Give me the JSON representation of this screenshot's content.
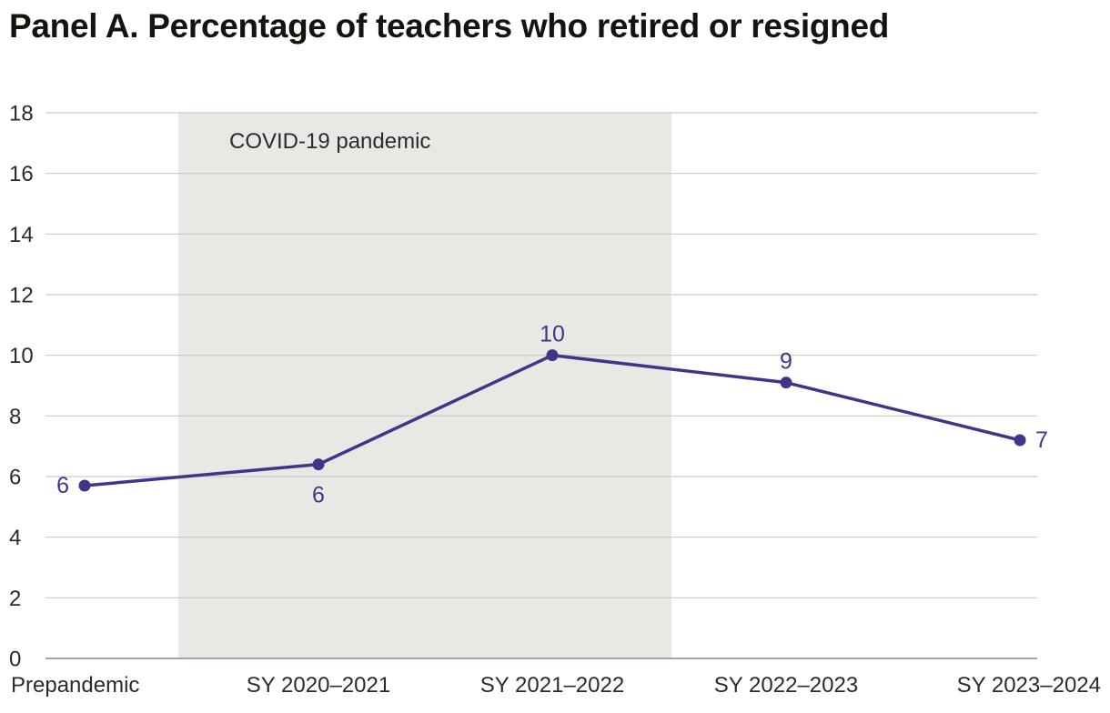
{
  "title": "Panel A. Percentage of teachers who retired or resigned",
  "colors": {
    "series": "#3f3589",
    "shade": "#e9e8e5",
    "grid": "#c9c9c9",
    "axis": "#8a8a8a"
  },
  "chart_data": {
    "type": "line",
    "title": "Panel A. Percentage of teachers who retired or resigned",
    "xlabel": "",
    "ylabel": "",
    "ylim": [
      0,
      18
    ],
    "yticks": [
      "0",
      "2",
      "4",
      "6",
      "8",
      "10",
      "12",
      "14",
      "16",
      "18"
    ],
    "categories": [
      "Prepandemic",
      "SY 2020–2021",
      "SY 2021–2022",
      "SY 2022–2023",
      "SY 2023–2024"
    ],
    "series": [
      {
        "values": [
          5.7,
          6.4,
          10.0,
          9.1,
          7.2
        ],
        "labels": [
          "6",
          "6",
          "10",
          "9",
          "7"
        ]
      }
    ],
    "shaded_region": {
      "label": "COVID-19 pandemic",
      "from_category": "SY 2020–2021",
      "to_category": "SY 2021–2022"
    },
    "grid": true,
    "legend": "none"
  }
}
